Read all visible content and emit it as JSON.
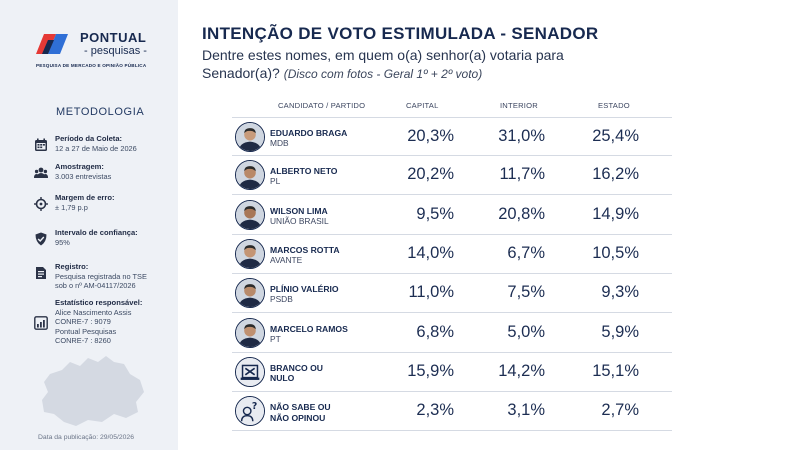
{
  "brand": {
    "name": "PONTUAL",
    "sub": "- pesquisas -",
    "tagline": "PESQUISA DE MERCADO E OPINIÃO PÚBLICA",
    "colors": {
      "navy": "#17294f",
      "red": "#e53935",
      "blue": "#2f6fd6"
    }
  },
  "sidebar": {
    "title": "METODOLOGIA",
    "items": [
      {
        "icon": "calendar-icon",
        "label": "Período da Coleta:",
        "lines": [
          "12 a 27 de Maio de 2026"
        ]
      },
      {
        "icon": "people-icon",
        "label": "Amostragem:",
        "lines": [
          "3.003 entrevistas"
        ]
      },
      {
        "icon": "crosshair-icon",
        "label": "Margem de erro:",
        "lines": [
          "± 1,79 p.p"
        ]
      },
      {
        "icon": "shield-check-icon",
        "label": "Intervalo de confiança:",
        "lines": [
          "95%"
        ]
      },
      {
        "icon": "document-icon",
        "label": "Registro:",
        "lines": [
          "Pesquisa registrada no TSE",
          "sob o nº AM-04117/2026"
        ]
      },
      {
        "icon": "bar-chart-icon",
        "label": "Estatístico responsável:",
        "lines": [
          "Alice Nascimento Assis",
          "CONRE-7 : 9079",
          "Pontual Pesquisas",
          "CONRE-7 : 8260"
        ]
      }
    ],
    "pub_date": "Data da publicação: 29/05/2026"
  },
  "header": {
    "title": "INTENÇÃO DE VOTO ESTIMULADA - SENADOR",
    "subtitle": "Dentre estes nomes, em quem o(a) senhor(a) votaria para Senador(a)?",
    "note": "(Disco com fotos - Geral 1º + 2º voto)"
  },
  "chart_data": {
    "type": "table",
    "title": "INTENÇÃO DE VOTO ESTIMULADA - SENADOR",
    "columns": [
      "CANDIDATO / PARTIDO",
      "CAPITAL",
      "INTERIOR",
      "ESTADO"
    ],
    "rows": [
      {
        "name": "EDUARDO BRAGA",
        "party": "MDB",
        "capital": "20,3%",
        "interior": "31,0%",
        "estado": "25,4%",
        "avatar": "photo"
      },
      {
        "name": "ALBERTO NETO",
        "party": "PL",
        "capital": "20,2%",
        "interior": "11,7%",
        "estado": "16,2%",
        "avatar": "photo"
      },
      {
        "name": "WILSON LIMA",
        "party": "UNIÃO BRASIL",
        "capital": "9,5%",
        "interior": "20,8%",
        "estado": "14,9%",
        "avatar": "photo"
      },
      {
        "name": "MARCOS ROTTA",
        "party": "AVANTE",
        "capital": "14,0%",
        "interior": "6,7%",
        "estado": "10,5%",
        "avatar": "photo"
      },
      {
        "name": "PLÍNIO VALÉRIO",
        "party": "PSDB",
        "capital": "11,0%",
        "interior": "7,5%",
        "estado": "9,3%",
        "avatar": "photo"
      },
      {
        "name": "MARCELO RAMOS",
        "party": "PT",
        "capital": "6,8%",
        "interior": "5,0%",
        "estado": "5,9%",
        "avatar": "photo"
      },
      {
        "name": "BRANCO OU\nNULO",
        "party": "",
        "capital": "15,9%",
        "interior": "14,2%",
        "estado": "15,1%",
        "avatar": "ballot-x-icon"
      },
      {
        "name": "NÃO SABE OU\nNÃO OPINOU",
        "party": "",
        "capital": "2,3%",
        "interior": "3,1%",
        "estado": "2,7%",
        "avatar": "question-person-icon"
      }
    ]
  }
}
